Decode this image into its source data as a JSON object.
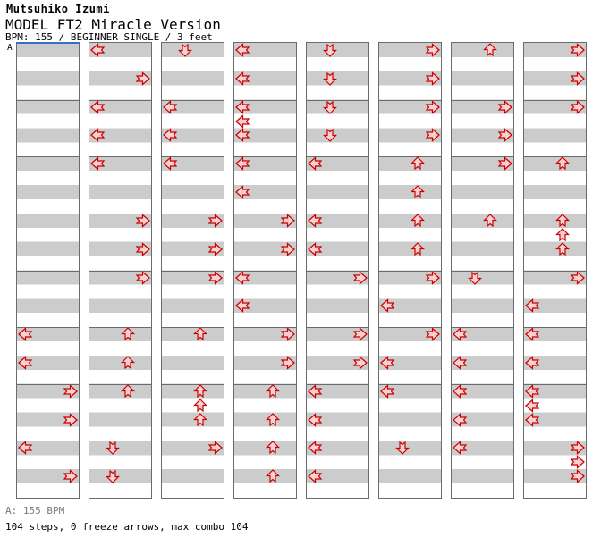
{
  "header": {
    "artist": "Mutsuhiko Izumi",
    "title": "MODEL FT2 Miracle Version",
    "info": "BPM: 155 / BEGINNER SINGLE / 3 feet"
  },
  "footer": {
    "bpm_line": "A: 155 BPM",
    "stats_line": "104 steps, 0 freeze arrows, max combo 104"
  },
  "colors": {
    "arrow_fill": "#f8d2d2",
    "arrow_stroke": "#cc0000",
    "stripe_gray": "#cccccc",
    "panel_border": "#6b6b6b",
    "section_marker_blue": "#3a6fc0",
    "footer_gray": "#7a7a7a"
  },
  "chart": {
    "section_label": "A",
    "lanes": [
      "left",
      "down",
      "up",
      "right"
    ],
    "columns_count": 8,
    "measures_per_column": 8,
    "beats_per_measure": 4,
    "total_steps": 104,
    "columns": [
      [
        [
          20,
          "L"
        ],
        [
          22,
          "L"
        ],
        [
          24,
          "R"
        ],
        [
          26,
          "R"
        ],
        [
          28,
          "L"
        ],
        [
          30,
          "R"
        ]
      ],
      [
        [
          0,
          "L"
        ],
        [
          2,
          "R"
        ],
        [
          4,
          "L"
        ],
        [
          6,
          "L"
        ],
        [
          8,
          "L"
        ],
        [
          12,
          "R"
        ],
        [
          14,
          "R"
        ],
        [
          16,
          "R"
        ],
        [
          20,
          "U"
        ],
        [
          22,
          "U"
        ],
        [
          24,
          "U"
        ],
        [
          28,
          "D"
        ],
        [
          30,
          "D"
        ]
      ],
      [
        [
          0,
          "D"
        ],
        [
          4,
          "L"
        ],
        [
          6,
          "L"
        ],
        [
          8,
          "L"
        ],
        [
          12,
          "R"
        ],
        [
          14,
          "R"
        ],
        [
          16,
          "R"
        ],
        [
          20,
          "U"
        ],
        [
          24,
          "U"
        ],
        [
          25,
          "U"
        ],
        [
          26,
          "U"
        ],
        [
          28,
          "R"
        ]
      ],
      [
        [
          0,
          "L"
        ],
        [
          2,
          "L"
        ],
        [
          4,
          "L"
        ],
        [
          5,
          "L"
        ],
        [
          6,
          "L"
        ],
        [
          8,
          "L"
        ],
        [
          10,
          "L"
        ],
        [
          12,
          "R"
        ],
        [
          14,
          "R"
        ],
        [
          16,
          "L"
        ],
        [
          18,
          "L"
        ],
        [
          20,
          "R"
        ],
        [
          22,
          "R"
        ],
        [
          24,
          "U"
        ],
        [
          26,
          "U"
        ],
        [
          28,
          "U"
        ],
        [
          30,
          "U"
        ]
      ],
      [
        [
          0,
          "D"
        ],
        [
          2,
          "D"
        ],
        [
          4,
          "D"
        ],
        [
          6,
          "D"
        ],
        [
          8,
          "L"
        ],
        [
          12,
          "L"
        ],
        [
          14,
          "L"
        ],
        [
          16,
          "R"
        ],
        [
          20,
          "R"
        ],
        [
          22,
          "R"
        ],
        [
          24,
          "L"
        ],
        [
          26,
          "L"
        ],
        [
          28,
          "L"
        ],
        [
          30,
          "L"
        ]
      ],
      [
        [
          0,
          "R"
        ],
        [
          2,
          "R"
        ],
        [
          4,
          "R"
        ],
        [
          6,
          "R"
        ],
        [
          8,
          "U"
        ],
        [
          10,
          "U"
        ],
        [
          12,
          "U"
        ],
        [
          14,
          "U"
        ],
        [
          16,
          "R"
        ],
        [
          18,
          "L"
        ],
        [
          20,
          "R"
        ],
        [
          22,
          "L"
        ],
        [
          24,
          "L"
        ],
        [
          28,
          "D"
        ]
      ],
      [
        [
          0,
          "U"
        ],
        [
          4,
          "R"
        ],
        [
          6,
          "R"
        ],
        [
          8,
          "R"
        ],
        [
          12,
          "U"
        ],
        [
          16,
          "D"
        ],
        [
          20,
          "L"
        ],
        [
          22,
          "L"
        ],
        [
          24,
          "L"
        ],
        [
          26,
          "L"
        ],
        [
          28,
          "L"
        ]
      ],
      [
        [
          0,
          "R"
        ],
        [
          2,
          "R"
        ],
        [
          4,
          "R"
        ],
        [
          8,
          "U"
        ],
        [
          12,
          "U"
        ],
        [
          13,
          "U"
        ],
        [
          14,
          "U"
        ],
        [
          16,
          "R"
        ],
        [
          18,
          "L"
        ],
        [
          20,
          "L"
        ],
        [
          22,
          "L"
        ],
        [
          24,
          "L"
        ],
        [
          25,
          "L"
        ],
        [
          26,
          "L"
        ],
        [
          28,
          "R"
        ],
        [
          29,
          "R"
        ],
        [
          30,
          "R"
        ]
      ]
    ]
  }
}
